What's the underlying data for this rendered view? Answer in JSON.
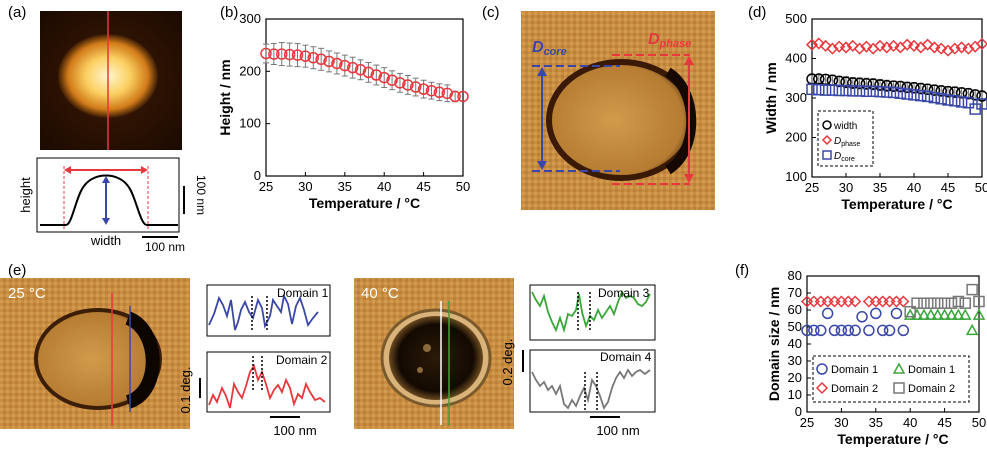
{
  "panels": {
    "a": {
      "label": "(a)",
      "ylabel": "height",
      "xlabel": "width",
      "scalebar_v": "100 nm",
      "scalebar_h": "100 nm"
    },
    "c": {
      "label": "(c)",
      "core_label_main": "D",
      "core_label_sub": "core",
      "phase_label_main": "D",
      "phase_label_sub": "phase"
    },
    "e": {
      "label": "(e)",
      "temp1": "25 °C",
      "temp2": "40 °C",
      "domain1": "Domain 1",
      "domain2": "Domain 2",
      "domain3": "Domain 3",
      "domain4": "Domain 4",
      "scale1": "0.1 deg.",
      "scale2": "0.2 deg.",
      "scalebar1": "100 nm",
      "scalebar2": "100 nm"
    }
  },
  "colors": {
    "red": "#e8383d",
    "blue": "#3a47a8",
    "green": "#3aa53a",
    "gray": "#777777",
    "black": "#000000"
  },
  "chart_data": [
    {
      "id": "b",
      "label": "(b)",
      "type": "scatter",
      "xlabel": "Temperature / °C",
      "ylabel": "Height / nm",
      "xlim": [
        25,
        50
      ],
      "ylim": [
        0,
        300
      ],
      "xticks": [
        25,
        30,
        35,
        40,
        45,
        50
      ],
      "yticks": [
        0,
        100,
        200,
        300
      ],
      "series": [
        {
          "marker": "circle",
          "color": "#e8383d",
          "x": [
            25,
            26,
            27,
            28,
            29,
            30,
            31,
            32,
            33,
            34,
            35,
            36,
            37,
            38,
            39,
            40,
            41,
            42,
            43,
            44,
            45,
            46,
            47,
            48,
            49,
            50
          ],
          "y": [
            234,
            233,
            233,
            232,
            231,
            229,
            226,
            223,
            219,
            215,
            211,
            207,
            203,
            198,
            193,
            188,
            183,
            178,
            174,
            170,
            166,
            163,
            160,
            158,
            152,
            152
          ],
          "err": [
            18,
            20,
            22,
            22,
            22,
            21,
            21,
            21,
            20,
            20,
            20,
            20,
            19,
            19,
            19,
            19,
            18,
            18,
            18,
            17,
            17,
            16,
            16,
            16,
            10,
            0
          ]
        }
      ]
    },
    {
      "id": "d",
      "label": "(d)",
      "type": "scatter",
      "xlabel": "Temperature / °C",
      "ylabel": "Width / nm",
      "xlim": [
        25,
        50
      ],
      "ylim": [
        100,
        500
      ],
      "xticks": [
        25,
        30,
        35,
        40,
        45,
        50
      ],
      "yticks": [
        100,
        200,
        300,
        400,
        500
      ],
      "legend_position": "bottom-left",
      "series": [
        {
          "name": "width",
          "marker": "circle",
          "color": "#000000",
          "x": [
            25,
            26,
            27,
            28,
            29,
            30,
            31,
            32,
            33,
            34,
            35,
            36,
            37,
            38,
            39,
            40,
            41,
            42,
            43,
            44,
            45,
            46,
            47,
            48,
            49,
            50
          ],
          "y": [
            348,
            348,
            347,
            345,
            342,
            340,
            338,
            337,
            336,
            335,
            333,
            331,
            330,
            329,
            327,
            326,
            324,
            322,
            320,
            318,
            316,
            315,
            313,
            311,
            308,
            305
          ],
          "err": [
            10,
            10,
            12,
            13,
            13,
            14,
            14,
            14,
            14,
            14,
            14,
            14,
            13,
            13,
            13,
            13,
            13,
            13,
            13,
            13,
            13,
            13,
            13,
            13,
            12,
            10
          ]
        },
        {
          "name_main": "D",
          "name_sub": "phase",
          "marker": "diamond",
          "color": "#e8383d",
          "x": [
            25,
            26,
            27,
            28,
            29,
            30,
            31,
            32,
            33,
            34,
            35,
            36,
            37,
            38,
            39,
            40,
            41,
            42,
            43,
            44,
            45,
            46,
            47,
            48,
            49,
            50
          ],
          "y": [
            435,
            438,
            432,
            425,
            430,
            428,
            432,
            425,
            430,
            425,
            432,
            428,
            432,
            428,
            435,
            432,
            428,
            435,
            428,
            425,
            420,
            425,
            428,
            425,
            430,
            437
          ]
        },
        {
          "name_main": "D",
          "name_sub": "core",
          "marker": "square",
          "color": "#3a47a8",
          "x": [
            25,
            26,
            27,
            28,
            29,
            30,
            31,
            32,
            33,
            34,
            35,
            36,
            37,
            38,
            39,
            40,
            41,
            42,
            43,
            44,
            45,
            46,
            47,
            48,
            49,
            50
          ],
          "y": [
            322,
            321,
            320,
            320,
            319,
            319,
            318,
            318,
            317,
            317,
            316,
            315,
            314,
            312,
            310,
            308,
            306,
            304,
            301,
            298,
            295,
            293,
            290,
            288,
            272,
            285
          ]
        }
      ]
    },
    {
      "id": "f",
      "label": "(f)",
      "type": "scatter",
      "xlabel": "Temperature / °C",
      "ylabel": "Domain size / nm",
      "xlim": [
        25,
        50
      ],
      "ylim": [
        0,
        80
      ],
      "xticks": [
        25,
        30,
        35,
        40,
        45,
        50
      ],
      "yticks": [
        0,
        10,
        20,
        30,
        40,
        50,
        60,
        70,
        80
      ],
      "legend_position": "bottom",
      "series": [
        {
          "name": "Domain 1",
          "marker": "circle",
          "color": "#3a47a8",
          "x": [
            25,
            26,
            27,
            28,
            29,
            30,
            31,
            32,
            33,
            34,
            35,
            36,
            37,
            38,
            39
          ],
          "y": [
            48,
            48,
            48,
            58,
            48,
            48,
            48,
            48,
            56,
            48,
            58,
            48,
            48,
            58,
            48
          ]
        },
        {
          "name": "Domain 2",
          "marker": "diamond",
          "color": "#e8383d",
          "x": [
            25,
            26,
            27,
            28,
            29,
            30,
            31,
            32,
            34,
            35,
            36,
            37,
            38,
            39
          ],
          "y": [
            65,
            65,
            65,
            65,
            65,
            65,
            65,
            65,
            65,
            65,
            65,
            65,
            65,
            65
          ]
        },
        {
          "name": "Domain 1",
          "marker": "triangle",
          "color": "#3aa53a",
          "x": [
            40,
            41,
            42,
            43,
            44,
            45,
            46,
            47,
            48,
            49,
            50
          ],
          "y": [
            57,
            57,
            57,
            57,
            57,
            57,
            57,
            57,
            57,
            48,
            57
          ]
        },
        {
          "name": "Domain 2",
          "marker": "square",
          "color": "#777777",
          "x": [
            40,
            41,
            42,
            43,
            44,
            45,
            46,
            47,
            48,
            49,
            50
          ],
          "y": [
            59,
            64,
            64,
            64,
            64,
            64,
            64,
            65,
            64,
            72,
            65
          ]
        }
      ]
    }
  ]
}
